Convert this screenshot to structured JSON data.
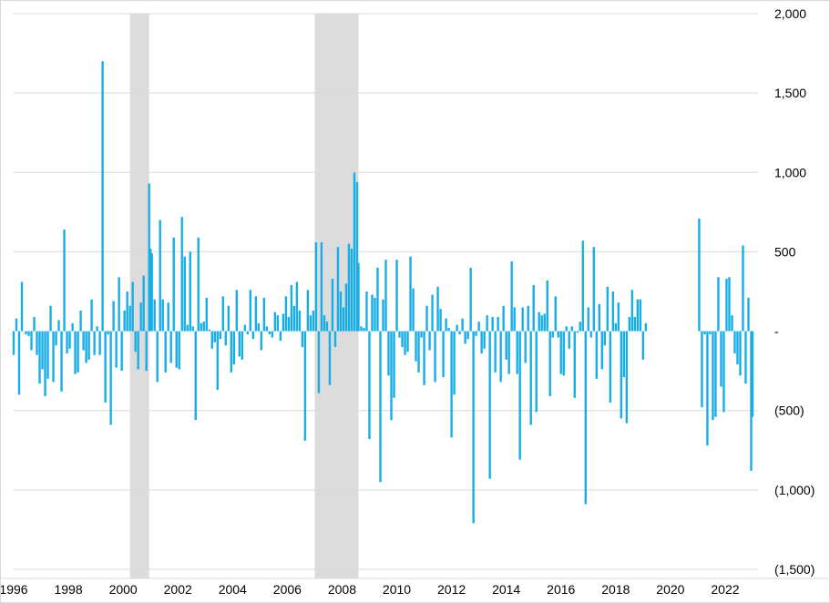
{
  "chart_data": {
    "type": "bar",
    "title": "",
    "xlabel": "",
    "ylabel": "",
    "x_range": [
      1996,
      2023.2
    ],
    "ylim": [
      -1500,
      2000
    ],
    "y_ticks": [
      2000,
      1500,
      1000,
      500,
      0,
      -500,
      -1000,
      -1500
    ],
    "y_tick_labels": [
      "2,000",
      "1,500",
      "1,000",
      "500",
      "-",
      "(500)",
      "(1,000)",
      "(1,500)"
    ],
    "x_ticks": [
      1996,
      1998,
      2000,
      2002,
      2004,
      2006,
      2008,
      2010,
      2012,
      2014,
      2016,
      2018,
      2020,
      2022
    ],
    "x_tick_labels": [
      "1996",
      "1998",
      "2000",
      "2002",
      "2004",
      "2006",
      "2008",
      "2010",
      "2012",
      "2014",
      "2016",
      "2018",
      "2020",
      "2022"
    ],
    "grid": true,
    "legend": "none",
    "bar_color": "#17aee6",
    "shade_color": "#dcdcdc",
    "shaded_periods": [
      [
        2000.25,
        2000.95
      ],
      [
        2007.0,
        2008.6
      ]
    ],
    "series": [
      {
        "values": [
          {
            "x": 1996.0,
            "y": -150
          },
          {
            "x": 1996.1,
            "y": 80
          },
          {
            "x": 1996.2,
            "y": -400
          },
          {
            "x": 1996.3,
            "y": 310
          },
          {
            "x": 1996.45,
            "y": -20
          },
          {
            "x": 1996.55,
            "y": -30
          },
          {
            "x": 1996.65,
            "y": -120
          },
          {
            "x": 1996.75,
            "y": 90
          },
          {
            "x": 1996.85,
            "y": -150
          },
          {
            "x": 1996.95,
            "y": -330
          },
          {
            "x": 1997.05,
            "y": -240
          },
          {
            "x": 1997.15,
            "y": -410
          },
          {
            "x": 1997.25,
            "y": -300
          },
          {
            "x": 1997.35,
            "y": 160
          },
          {
            "x": 1997.45,
            "y": -320
          },
          {
            "x": 1997.55,
            "y": -90
          },
          {
            "x": 1997.65,
            "y": 70
          },
          {
            "x": 1997.75,
            "y": -380
          },
          {
            "x": 1997.85,
            "y": 640
          },
          {
            "x": 1997.95,
            "y": -140
          },
          {
            "x": 1998.05,
            "y": -110
          },
          {
            "x": 1998.15,
            "y": 50
          },
          {
            "x": 1998.25,
            "y": -270
          },
          {
            "x": 1998.35,
            "y": -260
          },
          {
            "x": 1998.45,
            "y": 130
          },
          {
            "x": 1998.55,
            "y": -120
          },
          {
            "x": 1998.65,
            "y": -200
          },
          {
            "x": 1998.75,
            "y": -180
          },
          {
            "x": 1998.85,
            "y": 200
          },
          {
            "x": 1998.95,
            "y": -150
          },
          {
            "x": 1999.05,
            "y": 30
          },
          {
            "x": 1999.15,
            "y": -150
          },
          {
            "x": 1999.25,
            "y": 1700
          },
          {
            "x": 1999.35,
            "y": -450
          },
          {
            "x": 1999.45,
            "y": -20
          },
          {
            "x": 1999.55,
            "y": -590
          },
          {
            "x": 1999.65,
            "y": 190
          },
          {
            "x": 1999.75,
            "y": -230
          },
          {
            "x": 1999.85,
            "y": 340
          },
          {
            "x": 1999.95,
            "y": -250
          },
          {
            "x": 2000.05,
            "y": 130
          },
          {
            "x": 2000.15,
            "y": 250
          },
          {
            "x": 2000.25,
            "y": 160
          },
          {
            "x": 2000.35,
            "y": 310
          },
          {
            "x": 2000.45,
            "y": -130
          },
          {
            "x": 2000.55,
            "y": -240
          },
          {
            "x": 2000.65,
            "y": 180
          },
          {
            "x": 2000.75,
            "y": 350
          },
          {
            "x": 2000.85,
            "y": -250
          },
          {
            "x": 2000.95,
            "y": 930
          },
          {
            "x": 2001.0,
            "y": 520
          },
          {
            "x": 2001.05,
            "y": 490
          },
          {
            "x": 2001.15,
            "y": 200
          },
          {
            "x": 2001.25,
            "y": -320
          },
          {
            "x": 2001.35,
            "y": 700
          },
          {
            "x": 2001.45,
            "y": 200
          },
          {
            "x": 2001.55,
            "y": -260
          },
          {
            "x": 2001.65,
            "y": 180
          },
          {
            "x": 2001.75,
            "y": -200
          },
          {
            "x": 2001.85,
            "y": 590
          },
          {
            "x": 2001.95,
            "y": -230
          },
          {
            "x": 2002.05,
            "y": -240
          },
          {
            "x": 2002.15,
            "y": 720
          },
          {
            "x": 2002.25,
            "y": 470
          },
          {
            "x": 2002.35,
            "y": 40
          },
          {
            "x": 2002.45,
            "y": 500
          },
          {
            "x": 2002.55,
            "y": 30
          },
          {
            "x": 2002.65,
            "y": -560
          },
          {
            "x": 2002.75,
            "y": 590
          },
          {
            "x": 2002.85,
            "y": 50
          },
          {
            "x": 2002.95,
            "y": 60
          },
          {
            "x": 2003.05,
            "y": 210
          },
          {
            "x": 2003.15,
            "y": 10
          },
          {
            "x": 2003.25,
            "y": -110
          },
          {
            "x": 2003.35,
            "y": -70
          },
          {
            "x": 2003.45,
            "y": -370
          },
          {
            "x": 2003.55,
            "y": -50
          },
          {
            "x": 2003.65,
            "y": 220
          },
          {
            "x": 2003.75,
            "y": -90
          },
          {
            "x": 2003.85,
            "y": 160
          },
          {
            "x": 2003.95,
            "y": -260
          },
          {
            "x": 2004.05,
            "y": -210
          },
          {
            "x": 2004.15,
            "y": 260
          },
          {
            "x": 2004.25,
            "y": -160
          },
          {
            "x": 2004.35,
            "y": -180
          },
          {
            "x": 2004.45,
            "y": 40
          },
          {
            "x": 2004.55,
            "y": -20
          },
          {
            "x": 2004.65,
            "y": 260
          },
          {
            "x": 2004.75,
            "y": -50
          },
          {
            "x": 2004.85,
            "y": 220
          },
          {
            "x": 2004.95,
            "y": 50
          },
          {
            "x": 2005.05,
            "y": -120
          },
          {
            "x": 2005.15,
            "y": 210
          },
          {
            "x": 2005.25,
            "y": 30
          },
          {
            "x": 2005.35,
            "y": -20
          },
          {
            "x": 2005.45,
            "y": -40
          },
          {
            "x": 2005.55,
            "y": 120
          },
          {
            "x": 2005.65,
            "y": 100
          },
          {
            "x": 2005.75,
            "y": -60
          },
          {
            "x": 2005.85,
            "y": 110
          },
          {
            "x": 2005.95,
            "y": 220
          },
          {
            "x": 2006.05,
            "y": 90
          },
          {
            "x": 2006.15,
            "y": 290
          },
          {
            "x": 2006.25,
            "y": 160
          },
          {
            "x": 2006.35,
            "y": 310
          },
          {
            "x": 2006.45,
            "y": 130
          },
          {
            "x": 2006.55,
            "y": -100
          },
          {
            "x": 2006.65,
            "y": -690
          },
          {
            "x": 2006.75,
            "y": 260
          },
          {
            "x": 2006.85,
            "y": 100
          },
          {
            "x": 2006.95,
            "y": 130
          },
          {
            "x": 2007.05,
            "y": 560
          },
          {
            "x": 2007.15,
            "y": -390
          },
          {
            "x": 2007.25,
            "y": 560
          },
          {
            "x": 2007.35,
            "y": 100
          },
          {
            "x": 2007.45,
            "y": 60
          },
          {
            "x": 2007.55,
            "y": -340
          },
          {
            "x": 2007.65,
            "y": 330
          },
          {
            "x": 2007.75,
            "y": -100
          },
          {
            "x": 2007.85,
            "y": 530
          },
          {
            "x": 2007.95,
            "y": 250
          },
          {
            "x": 2008.05,
            "y": 150
          },
          {
            "x": 2008.15,
            "y": 300
          },
          {
            "x": 2008.25,
            "y": 550
          },
          {
            "x": 2008.35,
            "y": 520
          },
          {
            "x": 2008.45,
            "y": 1000
          },
          {
            "x": 2008.55,
            "y": 940
          },
          {
            "x": 2008.6,
            "y": 430
          },
          {
            "x": 2008.7,
            "y": 30
          },
          {
            "x": 2008.8,
            "y": 20
          },
          {
            "x": 2008.9,
            "y": 250
          },
          {
            "x": 2009.0,
            "y": -680
          },
          {
            "x": 2009.1,
            "y": 230
          },
          {
            "x": 2009.2,
            "y": 210
          },
          {
            "x": 2009.3,
            "y": 400
          },
          {
            "x": 2009.4,
            "y": -950
          },
          {
            "x": 2009.5,
            "y": 200
          },
          {
            "x": 2009.6,
            "y": 450
          },
          {
            "x": 2009.7,
            "y": -280
          },
          {
            "x": 2009.8,
            "y": -560
          },
          {
            "x": 2009.9,
            "y": -420
          },
          {
            "x": 2010.0,
            "y": 450
          },
          {
            "x": 2010.1,
            "y": -40
          },
          {
            "x": 2010.2,
            "y": -100
          },
          {
            "x": 2010.3,
            "y": -150
          },
          {
            "x": 2010.4,
            "y": -130
          },
          {
            "x": 2010.5,
            "y": 470
          },
          {
            "x": 2010.6,
            "y": 270
          },
          {
            "x": 2010.7,
            "y": -190
          },
          {
            "x": 2010.8,
            "y": -260
          },
          {
            "x": 2010.9,
            "y": -40
          },
          {
            "x": 2011.0,
            "y": -340
          },
          {
            "x": 2011.1,
            "y": 160
          },
          {
            "x": 2011.2,
            "y": -120
          },
          {
            "x": 2011.3,
            "y": 230
          },
          {
            "x": 2011.4,
            "y": -320
          },
          {
            "x": 2011.5,
            "y": 280
          },
          {
            "x": 2011.6,
            "y": 140
          },
          {
            "x": 2011.7,
            "y": -290
          },
          {
            "x": 2011.8,
            "y": 80
          },
          {
            "x": 2011.9,
            "y": 20
          },
          {
            "x": 2012.0,
            "y": -670
          },
          {
            "x": 2012.1,
            "y": -400
          },
          {
            "x": 2012.2,
            "y": 40
          },
          {
            "x": 2012.3,
            "y": -20
          },
          {
            "x": 2012.4,
            "y": 80
          },
          {
            "x": 2012.5,
            "y": -80
          },
          {
            "x": 2012.6,
            "y": -50
          },
          {
            "x": 2012.7,
            "y": 400
          },
          {
            "x": 2012.8,
            "y": -1210
          },
          {
            "x": 2012.9,
            "y": -30
          },
          {
            "x": 2013.0,
            "y": 60
          },
          {
            "x": 2013.1,
            "y": -140
          },
          {
            "x": 2013.2,
            "y": -110
          },
          {
            "x": 2013.3,
            "y": 100
          },
          {
            "x": 2013.4,
            "y": -930
          },
          {
            "x": 2013.5,
            "y": 90
          },
          {
            "x": 2013.6,
            "y": -260
          },
          {
            "x": 2013.7,
            "y": 90
          },
          {
            "x": 2013.8,
            "y": -320
          },
          {
            "x": 2013.9,
            "y": 160
          },
          {
            "x": 2014.0,
            "y": -180
          },
          {
            "x": 2014.1,
            "y": -270
          },
          {
            "x": 2014.2,
            "y": 440
          },
          {
            "x": 2014.3,
            "y": 150
          },
          {
            "x": 2014.4,
            "y": -270
          },
          {
            "x": 2014.5,
            "y": -810
          },
          {
            "x": 2014.6,
            "y": 150
          },
          {
            "x": 2014.7,
            "y": -200
          },
          {
            "x": 2014.8,
            "y": 160
          },
          {
            "x": 2014.9,
            "y": -590
          },
          {
            "x": 2015.0,
            "y": 290
          },
          {
            "x": 2015.1,
            "y": -510
          },
          {
            "x": 2015.2,
            "y": 120
          },
          {
            "x": 2015.3,
            "y": 100
          },
          {
            "x": 2015.4,
            "y": 110
          },
          {
            "x": 2015.5,
            "y": 320
          },
          {
            "x": 2015.6,
            "y": -410
          },
          {
            "x": 2015.7,
            "y": -40
          },
          {
            "x": 2015.8,
            "y": 220
          },
          {
            "x": 2015.9,
            "y": -40
          },
          {
            "x": 2016.0,
            "y": -270
          },
          {
            "x": 2016.1,
            "y": -280
          },
          {
            "x": 2016.2,
            "y": 30
          },
          {
            "x": 2016.3,
            "y": -110
          },
          {
            "x": 2016.4,
            "y": 30
          },
          {
            "x": 2016.5,
            "y": -420
          },
          {
            "x": 2016.6,
            "y": -10
          },
          {
            "x": 2016.7,
            "y": 60
          },
          {
            "x": 2016.8,
            "y": 570
          },
          {
            "x": 2016.9,
            "y": -1090
          },
          {
            "x": 2017.0,
            "y": 150
          },
          {
            "x": 2017.1,
            "y": -40
          },
          {
            "x": 2017.2,
            "y": 530
          },
          {
            "x": 2017.3,
            "y": -300
          },
          {
            "x": 2017.4,
            "y": 170
          },
          {
            "x": 2017.5,
            "y": -240
          },
          {
            "x": 2017.6,
            "y": -90
          },
          {
            "x": 2017.7,
            "y": 280
          },
          {
            "x": 2017.8,
            "y": -450
          },
          {
            "x": 2017.9,
            "y": 250
          },
          {
            "x": 2018.0,
            "y": 50
          },
          {
            "x": 2018.1,
            "y": 180
          },
          {
            "x": 2018.2,
            "y": -550
          },
          {
            "x": 2018.3,
            "y": -290
          },
          {
            "x": 2018.4,
            "y": -580
          },
          {
            "x": 2018.5,
            "y": 90
          },
          {
            "x": 2018.6,
            "y": 260
          },
          {
            "x": 2018.7,
            "y": 90
          },
          {
            "x": 2018.8,
            "y": 200
          },
          {
            "x": 2018.9,
            "y": 200
          },
          {
            "x": 2019.0,
            "y": -180
          },
          {
            "x": 2019.1,
            "y": 50
          },
          {
            "x": 2021.05,
            "y": 710
          },
          {
            "x": 2021.15,
            "y": -480
          },
          {
            "x": 2021.25,
            "y": -20
          },
          {
            "x": 2021.35,
            "y": -720
          },
          {
            "x": 2021.45,
            "y": -20
          },
          {
            "x": 2021.55,
            "y": -560
          },
          {
            "x": 2021.65,
            "y": -540
          },
          {
            "x": 2021.75,
            "y": 340
          },
          {
            "x": 2021.85,
            "y": -350
          },
          {
            "x": 2021.95,
            "y": -510
          },
          {
            "x": 2022.05,
            "y": 330
          },
          {
            "x": 2022.15,
            "y": 340
          },
          {
            "x": 2022.25,
            "y": 100
          },
          {
            "x": 2022.35,
            "y": -140
          },
          {
            "x": 2022.45,
            "y": -210
          },
          {
            "x": 2022.55,
            "y": -280
          },
          {
            "x": 2022.65,
            "y": 540
          },
          {
            "x": 2022.75,
            "y": -330
          },
          {
            "x": 2022.85,
            "y": 210
          },
          {
            "x": 2022.95,
            "y": -880
          },
          {
            "x": 2023.0,
            "y": -540
          }
        ]
      }
    ]
  }
}
